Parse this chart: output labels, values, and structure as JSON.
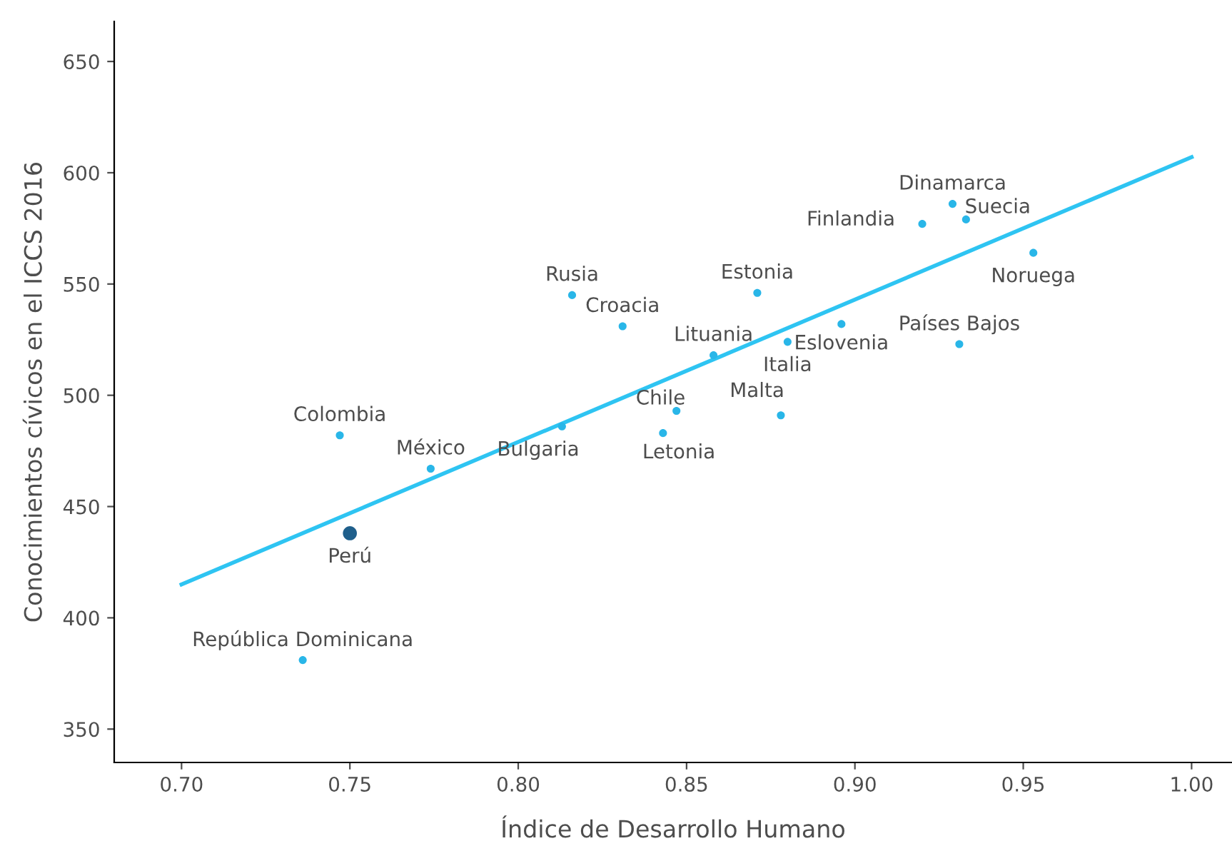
{
  "chart_data": {
    "type": "scatter",
    "xlabel": "Índice de Desarrollo Humano",
    "ylabel": "Conocimientos cívicos en el ICCS 2016",
    "xlim": [
      0.68,
      1.012
    ],
    "ylim": [
      335,
      668
    ],
    "xticks": [
      {
        "value": 0.7,
        "label": "0.70"
      },
      {
        "value": 0.75,
        "label": "0.75"
      },
      {
        "value": 0.8,
        "label": "0.80"
      },
      {
        "value": 0.85,
        "label": "0.85"
      },
      {
        "value": 0.9,
        "label": "0.90"
      },
      {
        "value": 0.95,
        "label": "0.95"
      },
      {
        "value": 1.0,
        "label": "1.00"
      }
    ],
    "yticks": [
      350,
      400,
      450,
      500,
      550,
      600,
      650
    ],
    "grid": false,
    "legend": false,
    "marker": "circle",
    "series": [
      {
        "color": "#29b6e8",
        "x": [
          0.929,
          0.933,
          0.92,
          0.953,
          0.931,
          0.896,
          0.88,
          0.871,
          0.816,
          0.831,
          0.858,
          0.878,
          0.847,
          0.843,
          0.813,
          0.747,
          0.774,
          0.736
        ],
        "values": [
          586,
          579,
          577,
          564,
          523,
          532,
          524,
          546,
          545,
          531,
          518,
          491,
          493,
          483,
          486,
          482,
          467,
          381
        ]
      },
      {
        "color": "#1f5f8b",
        "x": [
          0.75
        ],
        "values": [
          438
        ]
      },
      {
        "type": "line",
        "color": "#2ec4f2",
        "x": [
          0.7,
          1.0
        ],
        "values": [
          415,
          607
        ],
        "line_style": "solid",
        "marker": "none"
      }
    ],
    "annotations": [
      {
        "text": "Dinamarca",
        "x": 0.929,
        "y": 586
      },
      {
        "text": "Suecia",
        "x": 0.933,
        "y": 579
      },
      {
        "text": "Finlandia",
        "x": 0.92,
        "y": 577
      },
      {
        "text": "Noruega",
        "x": 0.953,
        "y": 564
      },
      {
        "text": "Países Bajos",
        "x": 0.931,
        "y": 523
      },
      {
        "text": "Eslovenia",
        "x": 0.896,
        "y": 532
      },
      {
        "text": "Italia",
        "x": 0.88,
        "y": 524
      },
      {
        "text": "Estonia",
        "x": 0.871,
        "y": 546
      },
      {
        "text": "Rusia",
        "x": 0.816,
        "y": 545
      },
      {
        "text": "Croacia",
        "x": 0.831,
        "y": 531
      },
      {
        "text": "Lituania",
        "x": 0.858,
        "y": 518
      },
      {
        "text": "Malta",
        "x": 0.878,
        "y": 491
      },
      {
        "text": "Chile",
        "x": 0.847,
        "y": 493
      },
      {
        "text": "Letonia",
        "x": 0.843,
        "y": 483
      },
      {
        "text": "Bulgaria",
        "x": 0.813,
        "y": 486
      },
      {
        "text": "Colombia",
        "x": 0.747,
        "y": 482
      },
      {
        "text": "México",
        "x": 0.774,
        "y": 467
      },
      {
        "text": "República Dominicana",
        "x": 0.736,
        "y": 381
      },
      {
        "text": "Perú",
        "x": 0.75,
        "y": 438
      }
    ]
  }
}
